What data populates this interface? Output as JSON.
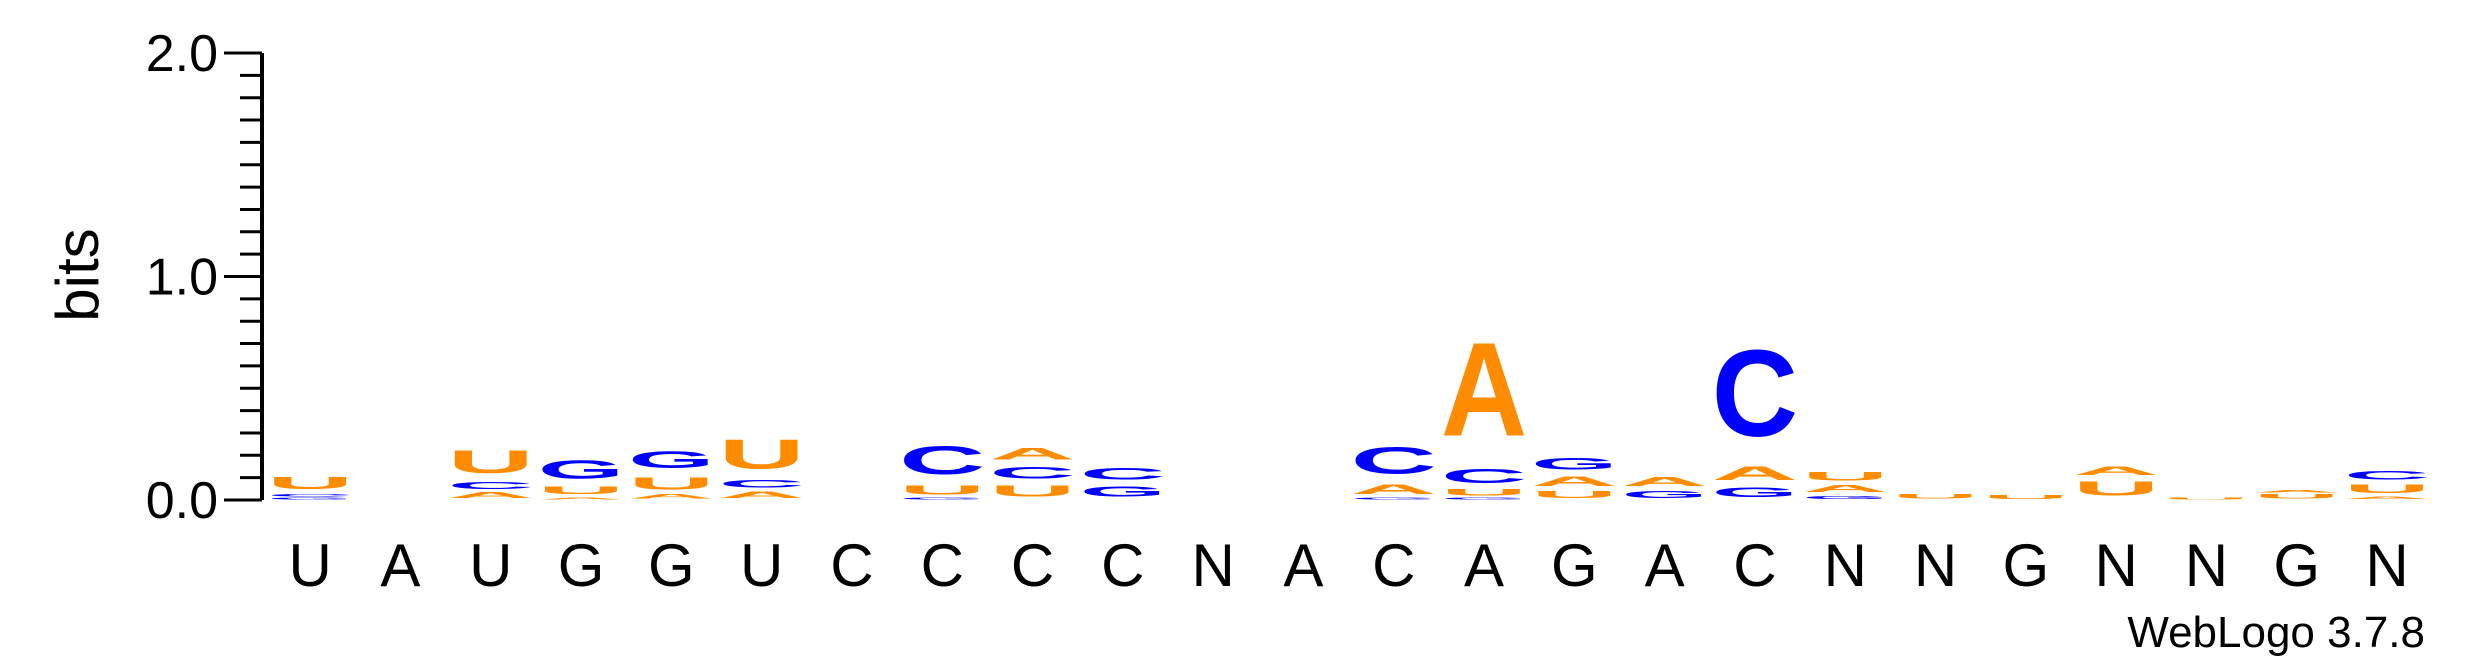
{
  "chart_data": {
    "type": "sequence-logo",
    "ylabel": "bits",
    "ylim": [
      0,
      2
    ],
    "yticks": [
      {
        "value": 0,
        "label": "0.0"
      },
      {
        "value": 1,
        "label": "1.0"
      },
      {
        "value": 2,
        "label": "2.0"
      }
    ],
    "xlabels": [
      "U",
      "A",
      "U",
      "G",
      "G",
      "U",
      "C",
      "C",
      "C",
      "C",
      "N",
      "A",
      "C",
      "A",
      "G",
      "A",
      "C",
      "N",
      "N",
      "G",
      "N",
      "N",
      "G",
      "N"
    ],
    "colors": {
      "A": "#ff8c00",
      "U": "#ff8c00",
      "C": "#0000ff",
      "G": "#0000ff"
    },
    "positions": [
      {
        "letters": [
          {
            "b": "G",
            "h": 0.012
          },
          {
            "b": "C",
            "h": 0.02
          },
          {
            "b": "U",
            "h": 0.09
          }
        ]
      },
      {
        "letters": []
      },
      {
        "letters": [
          {
            "b": "A",
            "h": 0.04
          },
          {
            "b": "C",
            "h": 0.05
          },
          {
            "b": "U",
            "h": 0.16
          }
        ]
      },
      {
        "letters": [
          {
            "b": "A",
            "h": 0.015
          },
          {
            "b": "U",
            "h": 0.055
          },
          {
            "b": "G",
            "h": 0.13
          }
        ]
      },
      {
        "letters": [
          {
            "b": "A",
            "h": 0.03
          },
          {
            "b": "U",
            "h": 0.09
          },
          {
            "b": "G",
            "h": 0.12
          }
        ]
      },
      {
        "letters": [
          {
            "b": "A",
            "h": 0.045
          },
          {
            "b": "C",
            "h": 0.055
          },
          {
            "b": "U",
            "h": 0.21
          }
        ]
      },
      {
        "letters": []
      },
      {
        "letters": [
          {
            "b": "G",
            "h": 0.012
          },
          {
            "b": "U",
            "h": 0.065
          },
          {
            "b": "C",
            "h": 0.2
          }
        ]
      },
      {
        "letters": [
          {
            "b": "U",
            "h": 0.08
          },
          {
            "b": "C",
            "h": 0.085
          },
          {
            "b": "A",
            "h": 0.085
          }
        ]
      },
      {
        "letters": [
          {
            "b": "G",
            "h": 0.075
          },
          {
            "b": "C",
            "h": 0.085
          }
        ]
      },
      {
        "letters": []
      },
      {
        "letters": []
      },
      {
        "letters": [
          {
            "b": "G",
            "h": 0.012
          },
          {
            "b": "A",
            "h": 0.07
          },
          {
            "b": "C",
            "h": 0.19
          }
        ]
      },
      {
        "letters": [
          {
            "b": "G",
            "h": 0.012
          },
          {
            "b": "U",
            "h": 0.045
          },
          {
            "b": "C",
            "h": 0.1
          },
          {
            "b": "A",
            "h": 0.67
          }
        ]
      },
      {
        "letters": [
          {
            "b": "U",
            "h": 0.05
          },
          {
            "b": "A",
            "h": 0.07
          },
          {
            "b": "G",
            "h": 0.085
          }
        ]
      },
      {
        "letters": [
          {
            "b": "G",
            "h": 0.05
          },
          {
            "b": "A",
            "h": 0.065
          }
        ]
      },
      {
        "letters": [
          {
            "b": "G",
            "h": 0.07
          },
          {
            "b": "A",
            "h": 0.095
          },
          {
            "b": "C",
            "h": 0.62
          }
        ]
      },
      {
        "letters": [
          {
            "b": "G",
            "h": 0.025
          },
          {
            "b": "A",
            "h": 0.05
          },
          {
            "b": "U",
            "h": 0.06
          }
        ]
      },
      {
        "letters": [
          {
            "b": "U",
            "h": 0.03
          }
        ]
      },
      {
        "letters": [
          {
            "b": "U",
            "h": 0.025
          }
        ]
      },
      {
        "letters": [
          {
            "b": "U",
            "h": 0.1
          },
          {
            "b": "A",
            "h": 0.06
          }
        ]
      },
      {
        "letters": [
          {
            "b": "U",
            "h": 0.012
          }
        ]
      },
      {
        "letters": [
          {
            "b": "U",
            "h": 0.03
          },
          {
            "b": "A",
            "h": 0.02
          }
        ]
      },
      {
        "letters": [
          {
            "b": "A",
            "h": 0.02
          },
          {
            "b": "U",
            "h": 0.06
          },
          {
            "b": "C",
            "h": 0.06
          }
        ]
      }
    ]
  },
  "credit": "WebLogo 3.7.8"
}
